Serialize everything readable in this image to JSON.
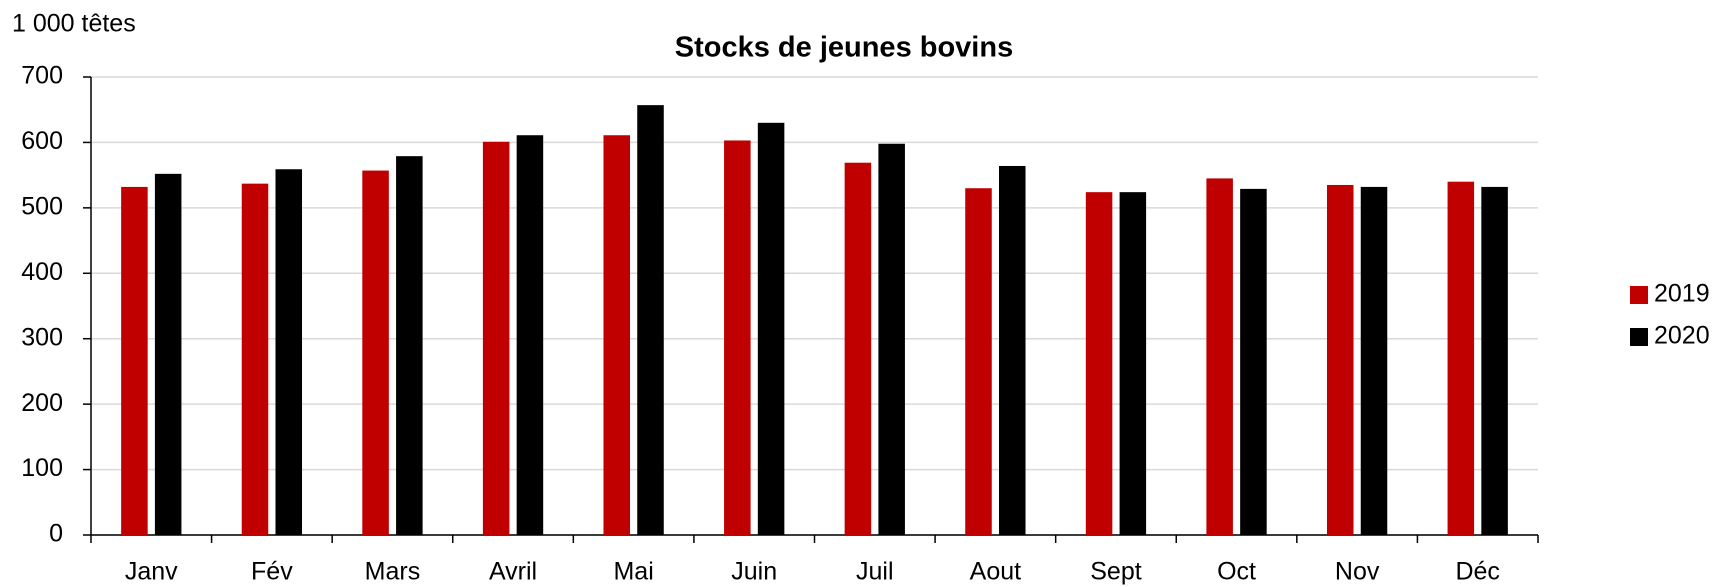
{
  "chart_data": {
    "type": "bar",
    "title": "Stocks de jeunes bovins",
    "y_label": "1 000 têtes",
    "categories": [
      "Janv",
      "Fév",
      "Mars",
      "Avril",
      "Mai",
      "Juin",
      "Juil",
      "Aout",
      "Sept",
      "Oct",
      "Nov",
      "Déc"
    ],
    "series": [
      {
        "name": "2019",
        "color": "#c00000",
        "values": [
          532,
          537,
          557,
          601,
          611,
          603,
          569,
          530,
          524,
          545,
          535,
          540
        ]
      },
      {
        "name": "2020",
        "color": "#000000",
        "values": [
          552,
          559,
          579,
          611,
          657,
          630,
          598,
          564,
          524,
          529,
          532,
          532
        ]
      }
    ],
    "ylim": [
      0,
      700
    ],
    "yticks": [
      0,
      100,
      200,
      300,
      400,
      500,
      600,
      700
    ],
    "grid": true,
    "legend": "right"
  }
}
